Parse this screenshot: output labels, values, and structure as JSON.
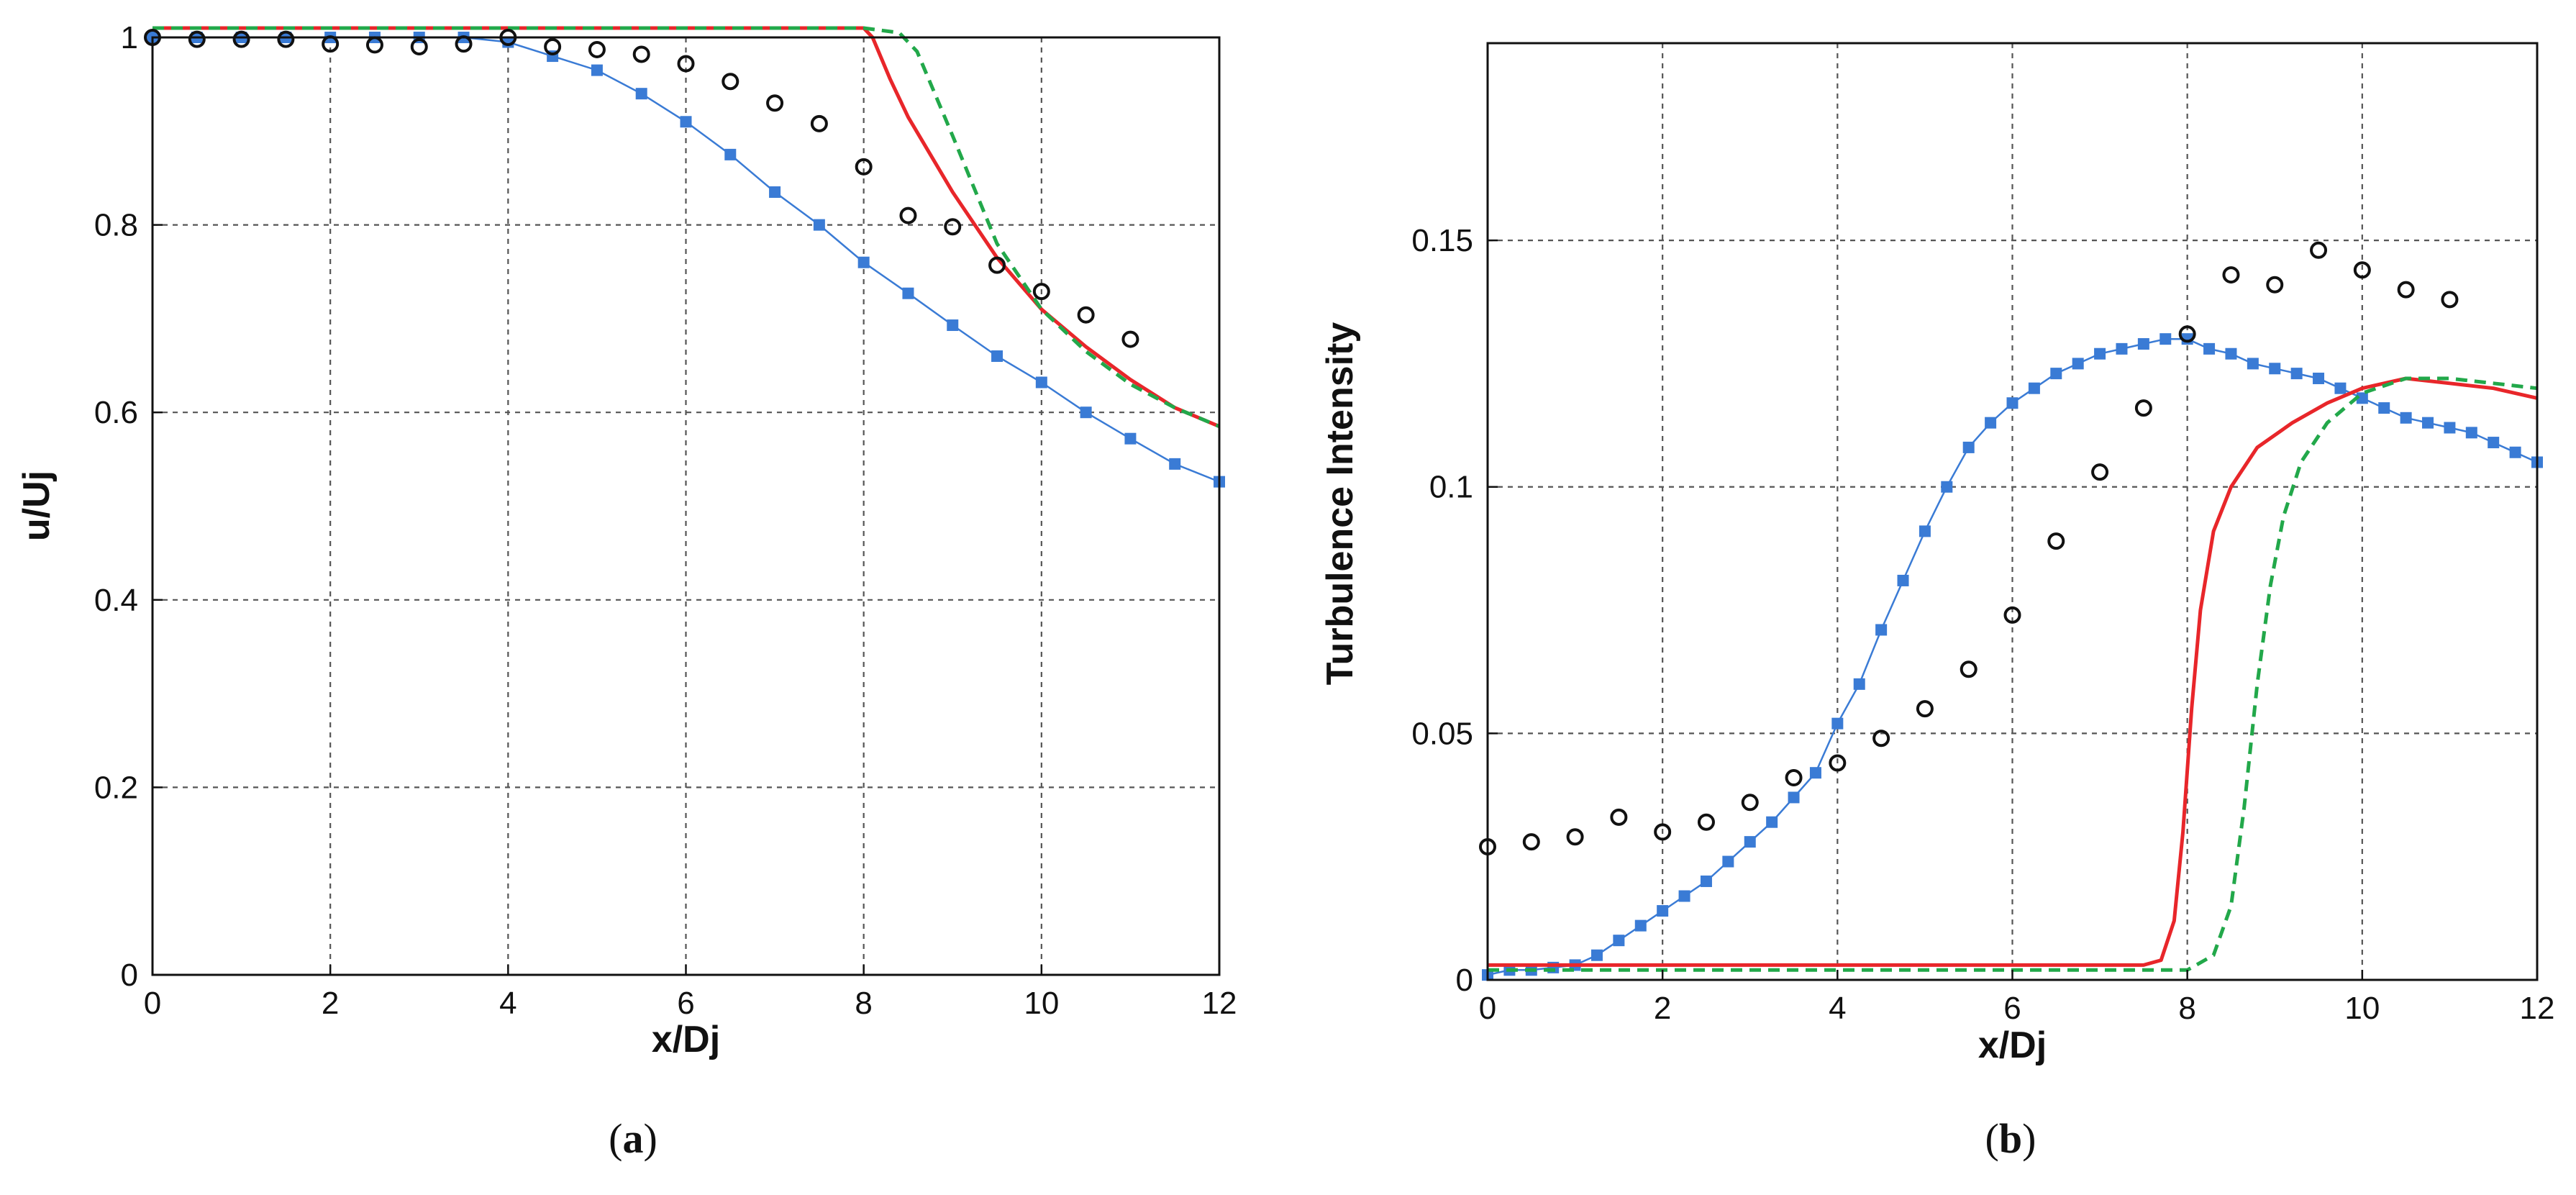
{
  "colors": {
    "blue": "#3a7bd5",
    "red": "#e8262a",
    "green": "#22a84a",
    "black": "#111111"
  },
  "chart_data": [
    {
      "type": "line",
      "panel": "a",
      "caption": {
        "open": "(",
        "letter": "a",
        "close": ")"
      },
      "xlabel": "x/Dj",
      "ylabel": "u/Uj",
      "xlim": [
        0,
        12
      ],
      "ylim": [
        0,
        1.0
      ],
      "xticks": [
        0,
        2,
        4,
        6,
        8,
        10,
        12
      ],
      "yticks": [
        0,
        0.2,
        0.4,
        0.6,
        0.8,
        1
      ],
      "xtick_labels": [
        "0",
        "2",
        "4",
        "6",
        "8",
        "10",
        "12"
      ],
      "ytick_labels": [
        "0",
        "0.2",
        "0.4",
        "0.6",
        "0.8",
        "1"
      ],
      "grid": true,
      "series": [
        {
          "name": "blue squares",
          "style": "line+square",
          "color": "#3a7bd5",
          "x": [
            0,
            0.5,
            1,
            1.5,
            2,
            2.5,
            3,
            3.5,
            4,
            4.5,
            5,
            5.5,
            6,
            6.5,
            7,
            7.5,
            8,
            8.5,
            9,
            9.5,
            10,
            10.5,
            11,
            11.5,
            12
          ],
          "y": [
            1.0,
            1.0,
            1.0,
            1.0,
            1.0,
            1.0,
            1.0,
            1.0,
            0.995,
            0.98,
            0.965,
            0.94,
            0.91,
            0.875,
            0.835,
            0.8,
            0.76,
            0.727,
            0.693,
            0.66,
            0.632,
            0.6,
            0.572,
            0.545,
            0.526
          ]
        },
        {
          "name": "red solid",
          "style": "solid",
          "color": "#e8262a",
          "x": [
            0,
            2,
            4,
            6,
            7,
            8,
            8.1,
            8.3,
            8.5,
            9,
            9.5,
            10,
            10.5,
            11,
            11.5,
            12
          ],
          "y": [
            1.01,
            1.01,
            1.01,
            1.01,
            1.01,
            1.01,
            1.0,
            0.955,
            0.915,
            0.835,
            0.765,
            0.71,
            0.67,
            0.635,
            0.605,
            0.585
          ]
        },
        {
          "name": "green dashed",
          "style": "dashed",
          "color": "#22a84a",
          "x": [
            0,
            2,
            4,
            6,
            8,
            8.4,
            8.6,
            9,
            9.5,
            10,
            10.5,
            11,
            11.5,
            12
          ],
          "y": [
            1.01,
            1.01,
            1.01,
            1.01,
            1.01,
            1.005,
            0.985,
            0.895,
            0.78,
            0.71,
            0.665,
            0.63,
            0.605,
            0.585
          ]
        },
        {
          "name": "black circles",
          "style": "marker-circle",
          "color": "#111111",
          "x": [
            0,
            0.5,
            1,
            1.5,
            2,
            2.5,
            3,
            3.5,
            4,
            4.5,
            5,
            5.5,
            6,
            6.5,
            7,
            7.5,
            8,
            8.5,
            9,
            9.5,
            10,
            10.5,
            11
          ],
          "y": [
            1.0,
            0.998,
            0.998,
            0.998,
            0.993,
            0.992,
            0.99,
            0.993,
            1.0,
            0.99,
            0.987,
            0.982,
            0.972,
            0.953,
            0.93,
            0.908,
            0.862,
            0.81,
            0.798,
            0.757,
            0.729,
            0.704,
            0.678
          ]
        }
      ]
    },
    {
      "type": "line",
      "panel": "b",
      "caption": {
        "open": "(",
        "letter": "b",
        "close": ")"
      },
      "xlabel": "x/Dj",
      "ylabel": "Turbulence Intensity",
      "xlim": [
        0,
        12
      ],
      "ylim": [
        0,
        0.19
      ],
      "xticks": [
        0,
        2,
        4,
        6,
        8,
        10,
        12
      ],
      "yticks": [
        0,
        0.05,
        0.1,
        0.15
      ],
      "xtick_labels": [
        "0",
        "2",
        "4",
        "6",
        "8",
        "10",
        "12"
      ],
      "ytick_labels": [
        "0",
        "0.05",
        "0.1",
        "0.15"
      ],
      "grid": true,
      "series": [
        {
          "name": "blue squares",
          "style": "line+square",
          "color": "#3a7bd5",
          "x": [
            0,
            0.25,
            0.5,
            0.75,
            1,
            1.25,
            1.5,
            1.75,
            2,
            2.25,
            2.5,
            2.75,
            3,
            3.25,
            3.5,
            3.75,
            4,
            4.25,
            4.5,
            4.75,
            5,
            5.25,
            5.5,
            5.75,
            6,
            6.25,
            6.5,
            6.75,
            7,
            7.25,
            7.5,
            7.75,
            8,
            8.25,
            8.5,
            8.75,
            9,
            9.25,
            9.5,
            9.75,
            10,
            10.25,
            10.5,
            10.75,
            11,
            11.25,
            11.5,
            11.75,
            12
          ],
          "y": [
            0.001,
            0.002,
            0.002,
            0.0025,
            0.003,
            0.005,
            0.008,
            0.011,
            0.014,
            0.017,
            0.02,
            0.024,
            0.028,
            0.032,
            0.037,
            0.042,
            0.052,
            0.06,
            0.071,
            0.081,
            0.091,
            0.1,
            0.108,
            0.113,
            0.117,
            0.12,
            0.123,
            0.125,
            0.127,
            0.128,
            0.129,
            0.13,
            0.13,
            0.128,
            0.127,
            0.125,
            0.124,
            0.123,
            0.122,
            0.12,
            0.118,
            0.116,
            0.114,
            0.113,
            0.112,
            0.111,
            0.109,
            0.107,
            0.105
          ]
        },
        {
          "name": "red solid",
          "style": "solid",
          "color": "#e8262a",
          "x": [
            0,
            2,
            4,
            6,
            7,
            7.5,
            7.7,
            7.85,
            7.95,
            8.05,
            8.15,
            8.3,
            8.5,
            8.8,
            9.2,
            9.6,
            10,
            10.5,
            11,
            11.5,
            12
          ],
          "y": [
            0.003,
            0.003,
            0.003,
            0.003,
            0.003,
            0.003,
            0.004,
            0.012,
            0.03,
            0.055,
            0.075,
            0.091,
            0.1,
            0.108,
            0.113,
            0.117,
            0.12,
            0.122,
            0.121,
            0.12,
            0.118
          ]
        },
        {
          "name": "green dashed",
          "style": "dashed",
          "color": "#22a84a",
          "x": [
            0,
            2,
            4,
            6,
            7,
            8,
            8.3,
            8.5,
            8.65,
            8.8,
            8.95,
            9.1,
            9.3,
            9.6,
            10,
            10.5,
            11,
            11.5,
            12
          ],
          "y": [
            0.002,
            0.002,
            0.002,
            0.002,
            0.002,
            0.002,
            0.005,
            0.015,
            0.035,
            0.06,
            0.08,
            0.094,
            0.105,
            0.113,
            0.119,
            0.122,
            0.122,
            0.121,
            0.12
          ]
        },
        {
          "name": "black circles",
          "style": "marker-circle",
          "color": "#111111",
          "x": [
            0,
            0.5,
            1,
            1.5,
            2,
            2.5,
            3,
            3.5,
            4,
            4.5,
            5,
            5.5,
            6,
            6.5,
            7,
            7.5,
            8,
            8.5,
            9,
            9.5,
            10,
            10.5,
            11
          ],
          "y": [
            0.027,
            0.028,
            0.029,
            0.033,
            0.03,
            0.032,
            0.036,
            0.041,
            0.044,
            0.049,
            0.055,
            0.063,
            0.074,
            0.089,
            0.103,
            0.116,
            0.131,
            0.143,
            0.141,
            0.148,
            0.144,
            0.14,
            0.138
          ]
        }
      ]
    }
  ]
}
